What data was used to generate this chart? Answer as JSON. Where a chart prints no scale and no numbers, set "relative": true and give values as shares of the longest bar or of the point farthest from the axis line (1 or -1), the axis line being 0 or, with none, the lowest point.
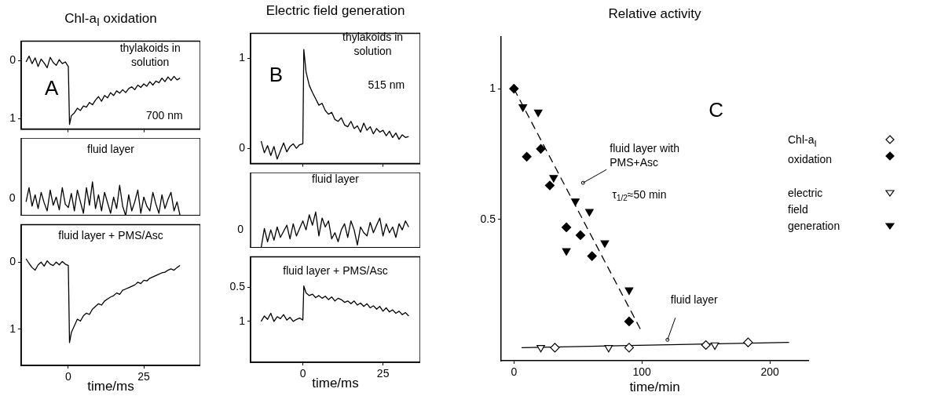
{
  "chart_data": [
    {
      "type": "line",
      "title": "Chl-a$_{I}$ oxidation",
      "annotations": [
        "thylakoids in solution",
        "A",
        "700 nm"
      ],
      "color": "#000000",
      "xlim": [
        -15.6,
        43.7
      ],
      "xticks": [
        0,
        25
      ],
      "ylim": [
        1.18,
        -0.34
      ],
      "yticks": [
        0,
        1
      ],
      "tick_labels": "y",
      "x": [
        -14,
        -13,
        -12,
        -11,
        -10,
        -9,
        -8,
        -7,
        -6,
        -5,
        -4,
        -3,
        -2,
        -1,
        0,
        0.4,
        1,
        2,
        3,
        4,
        5,
        6,
        7,
        8,
        9,
        10,
        11,
        12,
        13,
        14,
        15,
        16,
        17,
        18,
        19,
        20,
        21,
        22,
        23,
        24,
        25,
        26,
        27,
        28,
        29,
        30,
        31,
        32,
        33,
        34,
        35,
        36,
        37
      ],
      "values": [
        0.02,
        -0.08,
        0.05,
        -0.05,
        0.1,
        -0.03,
        0.04,
        0.12,
        -0.06,
        0.03,
        0.08,
        -0.02,
        0.05,
        0.02,
        0.1,
        1.1,
        0.95,
        0.9,
        0.82,
        0.86,
        0.78,
        0.8,
        0.72,
        0.76,
        0.68,
        0.62,
        0.7,
        0.6,
        0.64,
        0.55,
        0.6,
        0.52,
        0.56,
        0.5,
        0.55,
        0.48,
        0.45,
        0.5,
        0.42,
        0.46,
        0.4,
        0.44,
        0.36,
        0.42,
        0.35,
        0.38,
        0.3,
        0.36,
        0.28,
        0.34,
        0.27,
        0.33,
        0.3
      ]
    },
    {
      "type": "line",
      "relative": true,
      "annotations": [
        "fluid layer",
        "0"
      ],
      "color": "#000000",
      "xlim": [
        -15.6,
        43.7
      ],
      "xticks": [
        0,
        25
      ],
      "tick_labels": "y",
      "x": [
        -14,
        -13,
        -12,
        -11,
        -10,
        -9,
        -8,
        -7,
        -6,
        -5,
        -4,
        -3,
        -2,
        -1,
        0,
        1,
        2,
        3,
        4,
        5,
        6,
        7,
        8,
        9,
        10,
        11,
        12,
        13,
        14,
        15,
        16,
        17,
        18,
        19,
        20,
        21,
        22,
        23,
        24,
        25,
        26,
        27,
        28,
        29,
        30,
        31,
        32,
        33,
        34,
        35,
        36,
        37
      ],
      "values": [
        0.41,
        0.83,
        0.28,
        0.62,
        0.21,
        0.69,
        0.38,
        0.14,
        0.76,
        0.31,
        0.55,
        0.17,
        0.83,
        0.34,
        0.24,
        0.66,
        0.14,
        0.76,
        0.41,
        0.07,
        0.83,
        0.31,
        1.0,
        0.21,
        0.62,
        0.14,
        0.69,
        0.38,
        0.07,
        0.55,
        0.21,
        0.9,
        0.28,
        0,
        0.62,
        0.14,
        0.41,
        0.76,
        0.07,
        0.55,
        0.28,
        0.14,
        0.69,
        0.34,
        0.07,
        0.62,
        0.21,
        0.48,
        0.69,
        0.14,
        0.41,
        0
      ]
    },
    {
      "type": "line",
      "xlabel": "time/ms",
      "annotations": [
        "fluid layer + PMS/Asc"
      ],
      "color": "#000000",
      "xlim": [
        -15.6,
        43.7
      ],
      "xticks": [
        0,
        25
      ],
      "ylim": [
        1.54,
        -0.56
      ],
      "yticks": [
        0,
        1
      ],
      "x": [
        -14,
        -13,
        -12,
        -11,
        -10,
        -9,
        -8,
        -7,
        -6,
        -5,
        -4,
        -3,
        -2,
        -1,
        0,
        0.4,
        1,
        2,
        3,
        4,
        5,
        6,
        7,
        8,
        9,
        10,
        11,
        12,
        13,
        14,
        15,
        16,
        17,
        18,
        19,
        20,
        21,
        22,
        23,
        24,
        25,
        26,
        27,
        28,
        29,
        30,
        31,
        32,
        33,
        34,
        35,
        36,
        37
      ],
      "values": [
        -0.05,
        0.02,
        0.08,
        0.12,
        0.04,
        0.0,
        0.06,
        -0.02,
        0.03,
        0.05,
        0.0,
        0.04,
        -0.01,
        0.03,
        0.05,
        1.2,
        1.05,
        0.95,
        0.85,
        0.88,
        0.8,
        0.76,
        0.78,
        0.7,
        0.66,
        0.62,
        0.64,
        0.58,
        0.55,
        0.52,
        0.5,
        0.46,
        0.48,
        0.42,
        0.4,
        0.38,
        0.36,
        0.34,
        0.3,
        0.32,
        0.27,
        0.28,
        0.24,
        0.22,
        0.2,
        0.18,
        0.16,
        0.15,
        0.12,
        0.1,
        0.12,
        0.08,
        0.05
      ]
    },
    {
      "type": "line",
      "title": "Electric field generation",
      "annotations": [
        "thylakoids in solution",
        "B",
        "515 nm"
      ],
      "color": "#000000",
      "xlim": [
        -16.3,
        36.6
      ],
      "xticks": [
        0,
        25
      ],
      "ylim": [
        -0.17,
        1.28
      ],
      "yticks": [
        0,
        1
      ],
      "tick_labels": "y",
      "x": [
        -13,
        -12,
        -11,
        -10,
        -9,
        -8,
        -7,
        -6,
        -5,
        -4,
        -3,
        -2,
        -1,
        0,
        0.3,
        1,
        2,
        3,
        4,
        5,
        6,
        7,
        8,
        9,
        10,
        11,
        12,
        13,
        14,
        15,
        16,
        17,
        18,
        19,
        20,
        21,
        22,
        23,
        24,
        25,
        26,
        27,
        28,
        29,
        30,
        31,
        32,
        33
      ],
      "values": [
        0.08,
        -0.05,
        0.03,
        -0.08,
        0.02,
        -0.12,
        -0.03,
        0.06,
        -0.04,
        0.02,
        0.05,
        0.0,
        0.04,
        0.05,
        1.1,
        0.85,
        0.7,
        0.62,
        0.55,
        0.48,
        0.5,
        0.42,
        0.38,
        0.4,
        0.32,
        0.3,
        0.34,
        0.26,
        0.24,
        0.3,
        0.22,
        0.25,
        0.18,
        0.28,
        0.2,
        0.24,
        0.16,
        0.22,
        0.18,
        0.2,
        0.14,
        0.19,
        0.12,
        0.17,
        0.1,
        0.15,
        0.12,
        0.13
      ]
    },
    {
      "type": "line",
      "relative": true,
      "annotations": [
        "fluid layer",
        "0"
      ],
      "color": "#000000",
      "xlim": [
        -16.3,
        36.6
      ],
      "xticks": [
        0,
        25
      ],
      "tick_labels": "y",
      "x": [
        -13,
        -12,
        -11,
        -10,
        -9,
        -8,
        -7,
        -6,
        -5,
        -4,
        -3,
        -2,
        -1,
        0,
        1,
        2,
        3,
        4,
        5,
        6,
        7,
        8,
        9,
        10,
        11,
        12,
        13,
        14,
        15,
        16,
        17,
        18,
        19,
        20,
        21,
        22,
        23,
        24,
        25,
        26,
        27,
        28,
        29,
        30,
        31,
        32,
        33
      ],
      "values": [
        0,
        0.54,
        0.17,
        0.5,
        0.21,
        0.58,
        0.29,
        0.46,
        0.63,
        0.25,
        0.67,
        0.33,
        0.54,
        0.75,
        0.5,
        0.92,
        0.63,
        1.0,
        0.33,
        0.83,
        0.58,
        0.75,
        0.25,
        0.42,
        0.17,
        0.5,
        0.67,
        0.29,
        0.75,
        0.5,
        0.08,
        0.58,
        0.42,
        0.33,
        0.71,
        0.42,
        0.63,
        0.83,
        0.33,
        0.67,
        0.42,
        0.58,
        0.29,
        0.67,
        0.5,
        0.75,
        0.58
      ]
    },
    {
      "type": "line",
      "xlabel": "time/ms",
      "annotations": [
        "fluid layer + PMS/Asc"
      ],
      "color": "#000000",
      "xlim": [
        -16.3,
        36.6
      ],
      "xticks": [
        0,
        25
      ],
      "ylim": [
        1.6,
        0.05
      ],
      "yticks": [
        0.5,
        1
      ],
      "x": [
        -13,
        -12,
        -11,
        -10,
        -9,
        -8,
        -7,
        -6,
        -5,
        -4,
        -3,
        -2,
        -1,
        0,
        0.3,
        1,
        2,
        3,
        4,
        5,
        6,
        7,
        8,
        9,
        10,
        11,
        12,
        13,
        14,
        15,
        16,
        17,
        18,
        19,
        20,
        21,
        22,
        23,
        24,
        25,
        26,
        27,
        28,
        29,
        30,
        31,
        32,
        33
      ],
      "values": [
        1.0,
        0.92,
        0.97,
        0.88,
        1.0,
        0.93,
        0.96,
        0.9,
        0.98,
        0.94,
        1.0,
        0.97,
        0.95,
        0.98,
        0.48,
        0.58,
        0.62,
        0.6,
        0.65,
        0.62,
        0.66,
        0.63,
        0.68,
        0.64,
        0.7,
        0.66,
        0.68,
        0.72,
        0.7,
        0.74,
        0.7,
        0.76,
        0.73,
        0.78,
        0.74,
        0.8,
        0.77,
        0.82,
        0.78,
        0.85,
        0.8,
        0.86,
        0.83,
        0.88,
        0.85,
        0.9,
        0.87,
        0.92
      ]
    },
    {
      "type": "scatter",
      "title": "Relative activity",
      "xlabel": "time/min",
      "legend": "right",
      "xlim": [
        -10,
        230
      ],
      "xticks": [
        0,
        100,
        200
      ],
      "ylim": [
        -0.04,
        1.2
      ],
      "yticks": [
        0.5,
        1
      ],
      "annotations": [
        "C",
        {
          "text": "fluid layer with PMS+Asc",
          "x": 54,
          "y": 0.64
        },
        "τ$_{1/2}$≈50 min",
        {
          "text": "fluid layer",
          "x": 120,
          "y": 0.04
        }
      ],
      "series": [
        {
          "name": "Chl-a$_{I}$ oxidation",
          "marker": "diamond",
          "color": "#ffffff",
          "x": [
            32,
            90,
            150,
            183
          ],
          "values": [
            0.01,
            0.01,
            0.02,
            0.03
          ]
        },
        {
          "marker": "diamond",
          "color": "#000000",
          "x": [
            0,
            10,
            21,
            28,
            41,
            52,
            61,
            90
          ],
          "values": [
            1.0,
            0.74,
            0.77,
            0.63,
            0.47,
            0.44,
            0.36,
            0.11
          ]
        },
        {
          "name": "electric field generation",
          "marker": "triangle",
          "color": "#ffffff",
          "x": [
            21,
            74,
            157
          ],
          "values": [
            0.01,
            0.01,
            0.02
          ]
        },
        {
          "marker": "triangle",
          "color": "#000000",
          "x": [
            7,
            19,
            31,
            41,
            48,
            59,
            71,
            90
          ],
          "values": [
            0.93,
            0.91,
            0.66,
            0.38,
            0.57,
            0.53,
            0.41,
            0.23
          ]
        },
        {
          "type": "line",
          "line_style": "dashed",
          "color": "#000000",
          "x": [
            0,
            100
          ],
          "values": [
            1.0,
            0.07
          ]
        },
        {
          "type": "line",
          "line_style": "solid",
          "color": "#000000",
          "x": [
            6,
            215
          ],
          "values": [
            0.01,
            0.03
          ]
        }
      ]
    }
  ]
}
